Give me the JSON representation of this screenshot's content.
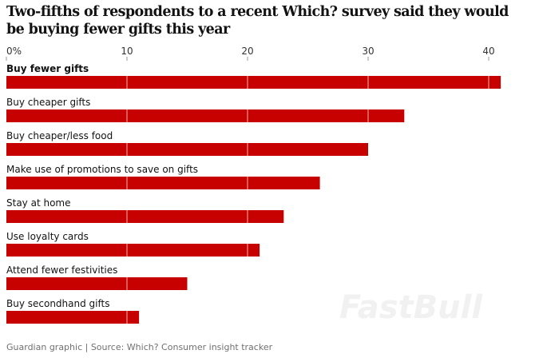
{
  "chart_data": {
    "type": "bar",
    "orientation": "horizontal",
    "title": "Two-fifths of respondents to a recent Which? survey said they would be buying fewer gifts this year",
    "categories": [
      "Buy fewer gifts",
      "Buy cheaper gifts",
      "Buy cheaper/less food",
      "Make use of promotions to save on gifts",
      "Stay at home",
      "Use loyalty cards",
      "Attend fewer festivities",
      "Buy secondhand gifts"
    ],
    "values": [
      41,
      33,
      30,
      26,
      23,
      21,
      15,
      11
    ],
    "xlim": [
      0,
      41
    ],
    "ticks": [
      0,
      10,
      20,
      30,
      40
    ],
    "tick_labels": [
      "0%",
      "10",
      "20",
      "30",
      "40"
    ],
    "axis_position": "top",
    "grid": true,
    "bar_color": "#c70000",
    "highlight_category": "Buy fewer gifts"
  },
  "footer": "Guardian graphic | Source: Which? Consumer insight tracker",
  "watermark": "FastBull"
}
